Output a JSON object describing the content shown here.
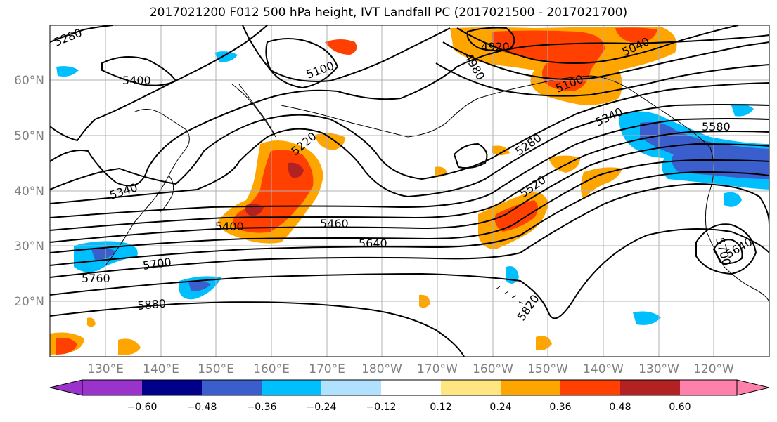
{
  "title": "2017021200 F012 500 hPa height, IVT Landfall PC (2017021500 - 2017021700)",
  "map": {
    "lat_labels": [
      "60°N",
      "50°N",
      "40°N",
      "30°N",
      "20°N"
    ],
    "lon_labels": [
      "130°E",
      "140°E",
      "150°E",
      "160°E",
      "170°E",
      "180°W",
      "170°W",
      "160°W",
      "150°W",
      "140°W",
      "130°W",
      "120°W"
    ],
    "contour_labels": [
      "5280",
      "5400",
      "5100",
      "5220",
      "5340",
      "5400",
      "5460",
      "5640",
      "5700",
      "5760",
      "5880",
      "4920",
      "4980",
      "5040",
      "5100",
      "5340",
      "5280",
      "5520",
      "5580",
      "5820",
      "5700",
      "5640"
    ]
  },
  "colorbar": {
    "tick_labels": [
      "−0.60",
      "−0.48",
      "−0.36",
      "−0.24",
      "−0.12",
      "0.12",
      "0.24",
      "0.36",
      "0.48",
      "0.60"
    ],
    "colors": [
      "#9933cc",
      "#00008b",
      "#3a5fcd",
      "#00bfff",
      "#b0e2ff",
      "#ffffff",
      "#ffe680",
      "#ffa500",
      "#ff4000",
      "#b22222",
      "#ff80aa"
    ]
  }
}
